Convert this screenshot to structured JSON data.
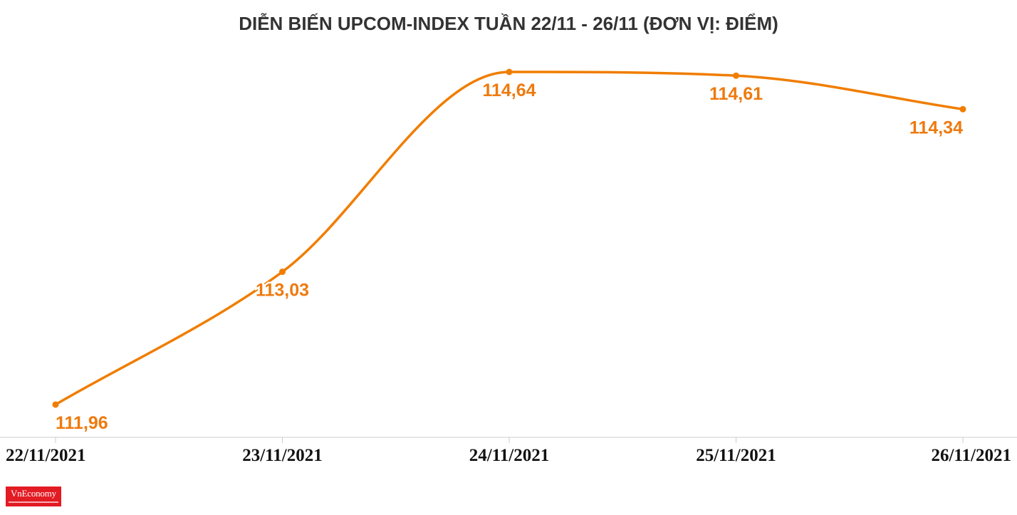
{
  "chart_data": {
    "type": "line",
    "title": "DIỄN BIẾN UPCOM-INDEX TUẦN 22/11 - 26/11 (ĐƠN VỊ: ĐIỂM)",
    "xlabel": "",
    "ylabel": "",
    "categories": [
      "22/11/2021",
      "23/11/2021",
      "24/11/2021",
      "25/11/2021",
      "26/11/2021"
    ],
    "series": [
      {
        "values": [
          111.96,
          113.03,
          114.64,
          114.61,
          114.34
        ],
        "labels": [
          "111,96",
          "113,03",
          "114,64",
          "114,61",
          "114,34"
        ]
      }
    ],
    "grid": false,
    "legend": "none",
    "line_color": "#f07d00",
    "label_color": "#ee7a0e",
    "axis_color": "#cccccc"
  },
  "brand": {
    "logo_text": "VnEconomy",
    "logo_color": "#e31b23"
  }
}
